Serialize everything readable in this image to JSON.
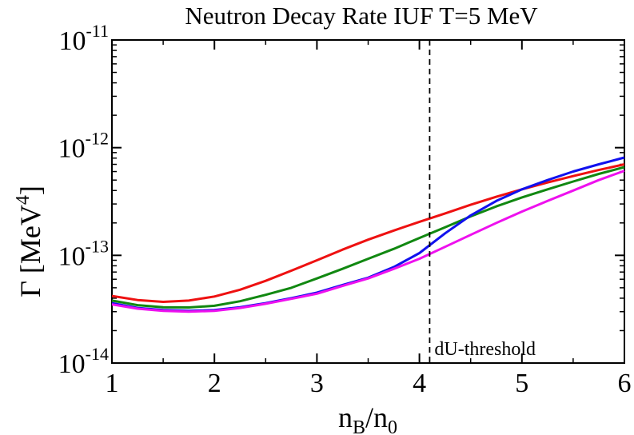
{
  "chart_data": {
    "type": "line",
    "title": "Neutron Decay Rate  IUF  T=5 MeV",
    "xlabel": {
      "main": "n",
      "sub1": "B",
      "slash": "/n",
      "sub2": "0"
    },
    "ylabel": {
      "main": "Γ [MeV",
      "sup": "4",
      "close": "]"
    },
    "xlim": [
      1,
      6
    ],
    "ylim": [
      1e-14,
      1e-11
    ],
    "yscale": "log",
    "x_ticks": [
      1,
      2,
      3,
      4,
      5,
      6
    ],
    "x_tick_labels": [
      "1",
      "2",
      "3",
      "4",
      "5",
      "6"
    ],
    "y_ticks": [
      {
        "value": 1e-14,
        "base": "10",
        "exp": "-14"
      },
      {
        "value": 1e-13,
        "base": "10",
        "exp": "-13"
      },
      {
        "value": 1e-12,
        "base": "10",
        "exp": "-12"
      },
      {
        "value": 1e-11,
        "base": "10",
        "exp": "-11"
      }
    ],
    "threshold": {
      "x": 4.1,
      "label": "dU-threshold"
    },
    "series": [
      {
        "name": "red",
        "color": "#ee1111",
        "x": [
          1.0,
          1.25,
          1.5,
          1.75,
          2.0,
          2.25,
          2.5,
          2.75,
          3.0,
          3.25,
          3.5,
          3.75,
          4.0,
          4.25,
          4.5,
          4.75,
          5.0,
          5.25,
          5.5,
          5.75,
          6.0
        ],
        "y": [
          4.2e-14,
          3.85e-14,
          3.7e-14,
          3.8e-14,
          4.15e-14,
          4.8e-14,
          5.8e-14,
          7.2e-14,
          9e-14,
          1.13e-13,
          1.4e-13,
          1.7e-13,
          2.05e-13,
          2.45e-13,
          2.95e-13,
          3.5e-13,
          4.1e-13,
          4.75e-13,
          5.45e-13,
          6.2e-13,
          7e-13
        ]
      },
      {
        "name": "green",
        "color": "#118811",
        "x": [
          1.0,
          1.25,
          1.5,
          1.75,
          2.0,
          2.25,
          2.5,
          2.75,
          3.0,
          3.25,
          3.5,
          3.75,
          4.0,
          4.25,
          4.5,
          4.75,
          5.0,
          5.25,
          5.5,
          5.75,
          6.0
        ],
        "y": [
          3.8e-14,
          3.45e-14,
          3.3e-14,
          3.28e-14,
          3.4e-14,
          3.75e-14,
          4.3e-14,
          5e-14,
          6.1e-14,
          7.5e-14,
          9.3e-14,
          1.15e-13,
          1.45e-13,
          1.82e-13,
          2.3e-13,
          2.85e-13,
          3.45e-13,
          4.1e-13,
          4.85e-13,
          5.7e-13,
          6.6e-13
        ]
      },
      {
        "name": "blue",
        "color": "#1111ee",
        "x": [
          1.0,
          1.25,
          1.5,
          1.75,
          2.0,
          2.25,
          2.5,
          2.75,
          3.0,
          3.25,
          3.5,
          3.75,
          4.0,
          4.25,
          4.5,
          4.75,
          5.0,
          5.25,
          5.5,
          5.75,
          6.0
        ],
        "y": [
          3.6e-14,
          3.25e-14,
          3.1e-14,
          3.05e-14,
          3.1e-14,
          3.3e-14,
          3.6e-14,
          4e-14,
          4.5e-14,
          5.3e-14,
          6.2e-14,
          7.8e-14,
          1.05e-13,
          1.6e-13,
          2.35e-13,
          3.2e-13,
          4.1e-13,
          5e-13,
          6e-13,
          7e-13,
          8.1e-13
        ]
      },
      {
        "name": "magenta",
        "color": "#ee11ee",
        "x": [
          1.0,
          1.25,
          1.5,
          1.75,
          2.0,
          2.25,
          2.5,
          2.75,
          3.0,
          3.25,
          3.5,
          3.75,
          4.0,
          4.25,
          4.5,
          4.75,
          5.0,
          5.25,
          5.5,
          5.75,
          6.0
        ],
        "y": [
          3.5e-14,
          3.2e-14,
          3.05e-14,
          3e-14,
          3.05e-14,
          3.25e-14,
          3.55e-14,
          3.95e-14,
          4.4e-14,
          5.2e-14,
          6.1e-14,
          7.5e-14,
          9.3e-14,
          1.2e-13,
          1.55e-13,
          2e-13,
          2.55e-13,
          3.2e-13,
          4e-13,
          5e-13,
          6.1e-13
        ]
      }
    ]
  }
}
